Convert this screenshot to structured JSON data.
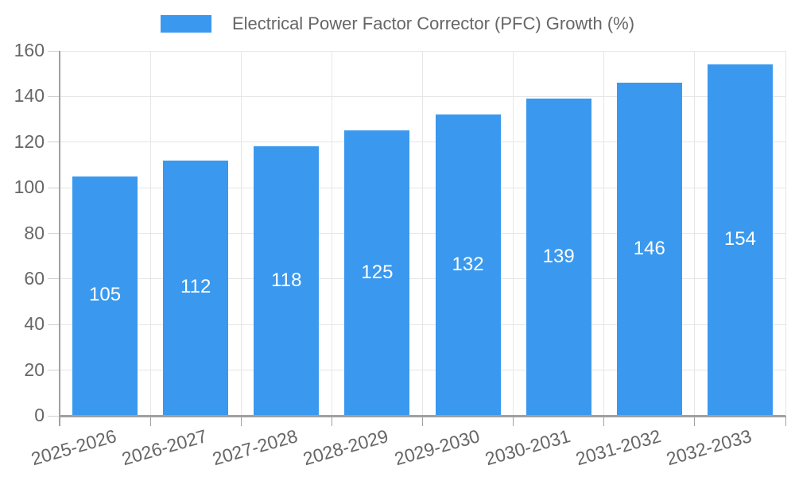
{
  "chart_data": {
    "type": "bar",
    "title": "",
    "series_name": "Electrical Power Factor Corrector (PFC) Growth (%)",
    "categories": [
      "2025-2026",
      "2026-2027",
      "2027-2028",
      "2028-2029",
      "2029-2030",
      "2030-2031",
      "2031-2032",
      "2032-2033"
    ],
    "values": [
      105,
      112,
      118,
      125,
      132,
      139,
      146,
      154
    ],
    "xlabel": "",
    "ylabel": "",
    "ylim": [
      0,
      160
    ],
    "ytick_step": 20,
    "ytick_labels": [
      "0",
      "20",
      "40",
      "60",
      "80",
      "100",
      "120",
      "140",
      "160"
    ],
    "grid": true,
    "legend_position": "top-center",
    "x_label_rotation_deg": -16,
    "colors": {
      "bar": "#3a99ee",
      "value_label": "#ffffff",
      "axis_line": "#a0a0a0",
      "gridline": "#e6e6e6",
      "y_tick": "#d0d0d0",
      "x_tick": "#a0a0a0",
      "tick_label": "#666666",
      "legend_text": "#666666",
      "background": "#ffffff"
    }
  }
}
